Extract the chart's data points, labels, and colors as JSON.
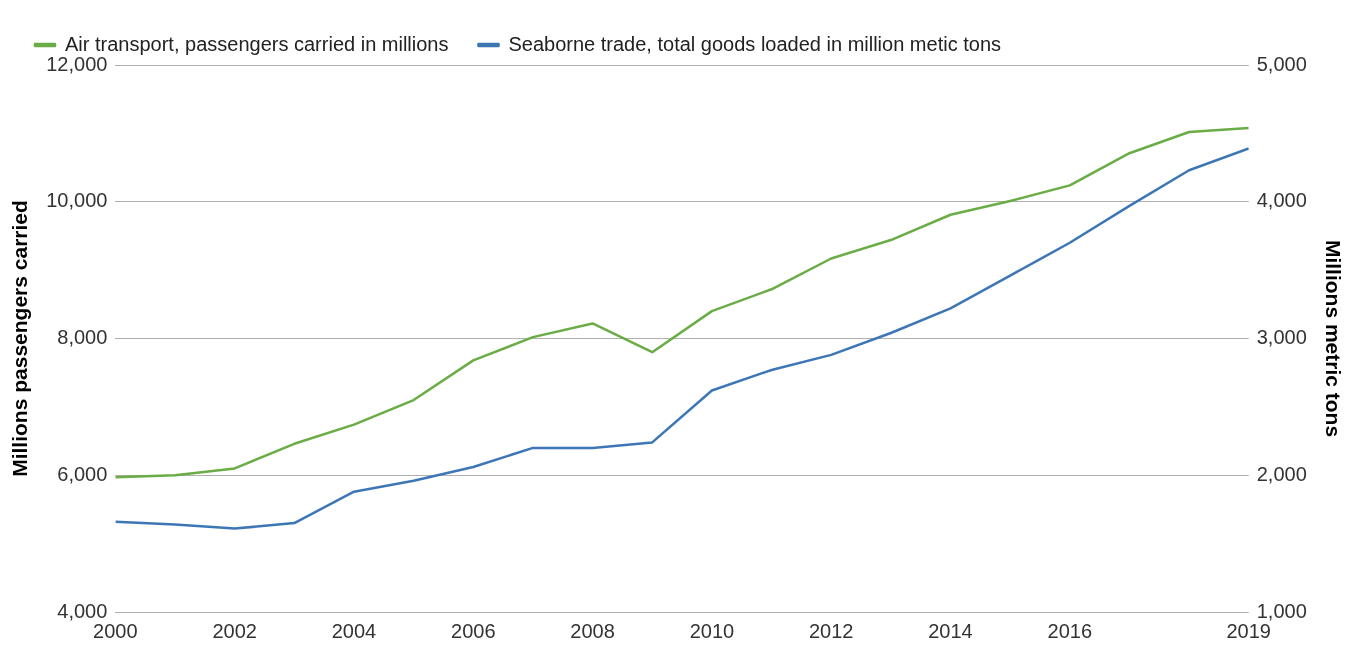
{
  "chart_data": {
    "type": "line",
    "x": [
      2000,
      2001,
      2002,
      2003,
      2004,
      2005,
      2006,
      2007,
      2008,
      2009,
      2010,
      2011,
      2012,
      2013,
      2014,
      2015,
      2016,
      2017,
      2018,
      2019
    ],
    "series": [
      {
        "name": "Air transport, passengers carried in millions",
        "color": "#6aac46",
        "values": [
          5970,
          6000,
          6100,
          6460,
          6740,
          7100,
          7680,
          8020,
          8220,
          7800,
          8400,
          8720,
          9170,
          9440,
          9810,
          10010,
          10240,
          10710,
          11020,
          11080
        ]
      },
      {
        "name": "Seaborne trade, total goods loaded in million metic tons",
        "color": "#3d76b5",
        "axis": "y2",
        "values": [
          1660,
          1640,
          1610,
          1650,
          1880,
          1960,
          2060,
          2200,
          2200,
          2240,
          2620,
          2770,
          2880,
          3040,
          3220,
          3460,
          3700,
          3970,
          4230,
          4390
        ]
      }
    ],
    "ylabel": "Millions passengers carried",
    "y2label": "Millions metric tons",
    "xlim": [
      2000,
      2019
    ],
    "xticks": [
      2000,
      2002,
      2004,
      2006,
      2008,
      2010,
      2012,
      2014,
      2016,
      2019
    ],
    "ylim": [
      4000,
      12000
    ],
    "yticks": [
      {
        "value": 4000,
        "label": "4,000"
      },
      {
        "value": 6000,
        "label": "6,000"
      },
      {
        "value": 8000,
        "label": "8,000"
      },
      {
        "value": 10000,
        "label": "10,000"
      },
      {
        "value": 12000,
        "label": "12,000"
      }
    ],
    "y2lim": [
      1000,
      5000
    ],
    "y2ticks": [
      {
        "value": 1000,
        "label": "1,000"
      },
      {
        "value": 2000,
        "label": "2,000"
      },
      {
        "value": 3000,
        "label": "3,000"
      },
      {
        "value": 4000,
        "label": "4,000"
      },
      {
        "value": 5000,
        "label": "5,000"
      }
    ],
    "grid": "y",
    "legend": "top left",
    "marker": "none",
    "line_style": "solid"
  }
}
